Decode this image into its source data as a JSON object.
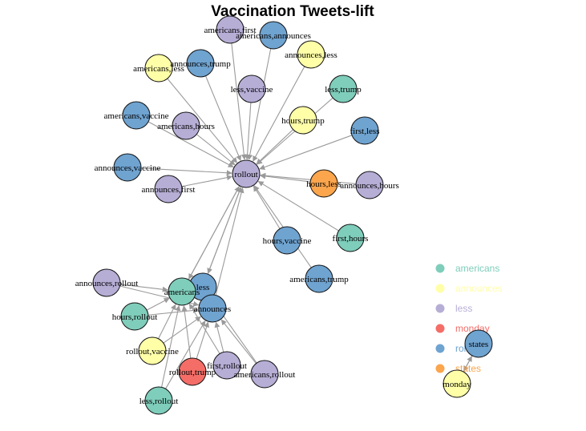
{
  "title": "Vaccination Tweets-lift",
  "colors": {
    "americans": "#7fcdbb",
    "announces": "#ffffa8",
    "less": "#b7aed6",
    "monday": "#f46d67",
    "rollout": "#6fa3d0",
    "states": "#fba54d",
    "edge": "#9a9a9a"
  },
  "legend": [
    {
      "label": "americans",
      "color": "#7fcdbb"
    },
    {
      "label": "announces",
      "color": "#ffffa8"
    },
    {
      "label": "less",
      "color": "#b7aed6"
    },
    {
      "label": "monday",
      "color": "#f46d67"
    },
    {
      "label": "rollout",
      "color": "#6fa3d0"
    },
    {
      "label": "states",
      "color": "#fba54d"
    }
  ],
  "nodes": [
    {
      "id": "americans,first",
      "group": "less"
    },
    {
      "id": "americans,announces",
      "group": "rollout"
    },
    {
      "id": "americans,less",
      "group": "announces"
    },
    {
      "id": "announces,trump",
      "group": "rollout"
    },
    {
      "id": "announces,less",
      "group": "announces"
    },
    {
      "id": "less,vaccine",
      "group": "less"
    },
    {
      "id": "less,trump",
      "group": "americans"
    },
    {
      "id": "americans,vaccine",
      "group": "rollout"
    },
    {
      "id": "americans,hours",
      "group": "less"
    },
    {
      "id": "hours,trump",
      "group": "announces"
    },
    {
      "id": "first,less",
      "group": "rollout"
    },
    {
      "id": "announces,vaccine",
      "group": "rollout"
    },
    {
      "id": "announces,first",
      "group": "less"
    },
    {
      "id": "rollout",
      "group": "less"
    },
    {
      "id": "hours,less",
      "group": "states"
    },
    {
      "id": "announces,hours",
      "group": "less"
    },
    {
      "id": "hours,vaccine",
      "group": "rollout"
    },
    {
      "id": "first,hours",
      "group": "americans"
    },
    {
      "id": "americans,trump",
      "group": "rollout"
    },
    {
      "id": "announces,rollout",
      "group": "less"
    },
    {
      "id": "less",
      "group": "rollout"
    },
    {
      "id": "americans",
      "group": "americans"
    },
    {
      "id": "announces",
      "group": "rollout"
    },
    {
      "id": "hours,rollout",
      "group": "americans"
    },
    {
      "id": "rollout,vaccine",
      "group": "announces"
    },
    {
      "id": "first,rollout",
      "group": "less"
    },
    {
      "id": "rollout,trump",
      "group": "monday"
    },
    {
      "id": "americans,rollout",
      "group": "less"
    },
    {
      "id": "less,rollout",
      "group": "americans"
    },
    {
      "id": "states",
      "group": "rollout"
    },
    {
      "id": "monday",
      "group": "announces"
    }
  ],
  "edges": [
    [
      "americans,first",
      "rollout"
    ],
    [
      "americans,announces",
      "rollout"
    ],
    [
      "americans,less",
      "rollout"
    ],
    [
      "announces,trump",
      "rollout"
    ],
    [
      "announces,less",
      "rollout"
    ],
    [
      "less,vaccine",
      "rollout"
    ],
    [
      "less,trump",
      "rollout"
    ],
    [
      "americans,vaccine",
      "rollout"
    ],
    [
      "americans,hours",
      "rollout"
    ],
    [
      "hours,trump",
      "rollout"
    ],
    [
      "first,less",
      "rollout"
    ],
    [
      "announces,vaccine",
      "rollout"
    ],
    [
      "announces,first",
      "rollout"
    ],
    [
      "hours,less",
      "rollout"
    ],
    [
      "announces,hours",
      "rollout"
    ],
    [
      "hours,vaccine",
      "rollout"
    ],
    [
      "first,hours",
      "rollout"
    ],
    [
      "americans,trump",
      "rollout"
    ],
    [
      "less",
      "rollout"
    ],
    [
      "americans",
      "rollout"
    ],
    [
      "announces",
      "rollout"
    ],
    [
      "rollout",
      "americans"
    ],
    [
      "rollout",
      "less"
    ],
    [
      "announces,rollout",
      "americans"
    ],
    [
      "announces,rollout",
      "announces"
    ],
    [
      "hours,rollout",
      "americans"
    ],
    [
      "hours,rollout",
      "announces"
    ],
    [
      "rollout,vaccine",
      "americans"
    ],
    [
      "rollout,vaccine",
      "announces"
    ],
    [
      "first,rollout",
      "americans"
    ],
    [
      "first,rollout",
      "announces"
    ],
    [
      "rollout,trump",
      "americans"
    ],
    [
      "rollout,trump",
      "announces"
    ],
    [
      "americans,rollout",
      "less"
    ],
    [
      "americans,rollout",
      "announces"
    ],
    [
      "less,rollout",
      "americans"
    ],
    [
      "less,rollout",
      "announces"
    ],
    [
      "states",
      "monday"
    ],
    [
      "monday",
      "states"
    ]
  ]
}
